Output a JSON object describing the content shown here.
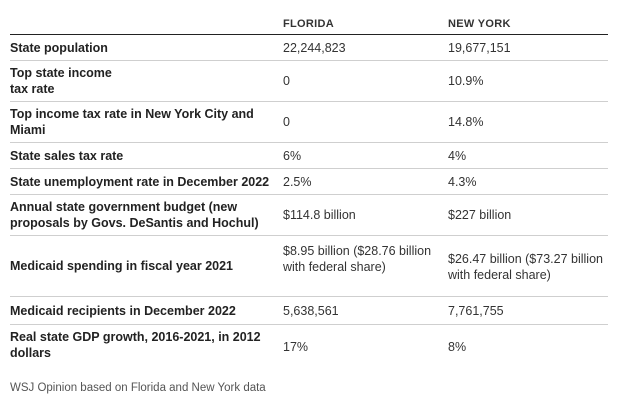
{
  "header": {
    "florida": "FLORIDA",
    "new_york": "NEW YORK"
  },
  "rows": [
    {
      "label": "State population",
      "florida": "22,244,823",
      "new_york": "19,677,151"
    },
    {
      "label": "Top state income tax rate",
      "florida": "0",
      "new_york": "10.9%"
    },
    {
      "label": "Top income tax rate in New York City and Miami",
      "florida": "0",
      "new_york": "14.8%"
    },
    {
      "label": "State sales tax rate",
      "florida": "6%",
      "new_york": "4%"
    },
    {
      "label": "State unemployment rate in December 2022",
      "florida": "2.5%",
      "new_york": "4.3%"
    },
    {
      "label": "Annual state government budget (new proposals by Govs. DeSantis and Hochul)",
      "florida": "$114.8 billion",
      "new_york": "$227 billion"
    },
    {
      "label": "Medicaid spending in fiscal year 2021",
      "florida": "$8.95 billion ($28.76 billion with federal share)",
      "new_york": "$26.47 billion ($73.27 billion with federal share)"
    },
    {
      "label": "Medicaid recipients in December 2022",
      "florida": "5,638,561",
      "new_york": "7,761,755"
    },
    {
      "label": "Real state GDP growth, 2016-2021, in 2012 dollars",
      "florida": "17%",
      "new_york": "8%"
    }
  ],
  "source": "WSJ Opinion based on Florida and New York data"
}
